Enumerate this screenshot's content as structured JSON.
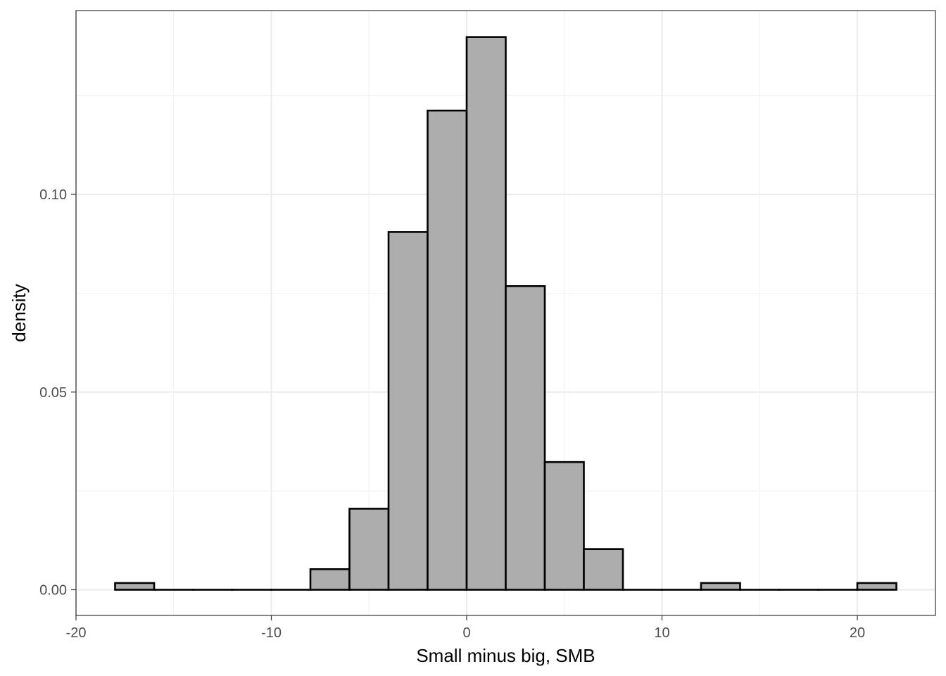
{
  "chart_data": {
    "type": "bar",
    "subtype": "histogram",
    "title": "",
    "xlabel": "Small minus big, SMB",
    "ylabel": "density",
    "xlim": [
      -20,
      24
    ],
    "ylim": [
      -0.0065,
      0.1465
    ],
    "x_ticks": [
      -20,
      -10,
      0,
      10,
      20
    ],
    "x_tick_labels": [
      "-20",
      "-10",
      "0",
      "10",
      "20"
    ],
    "y_ticks": [
      0.0,
      0.05,
      0.1
    ],
    "y_tick_labels": [
      "0.00",
      "0.05",
      "0.10"
    ],
    "x_minor_gridlines": [
      -15,
      -5,
      5,
      15
    ],
    "y_minor_gridlines": [
      0.025,
      0.075,
      0.125
    ],
    "grid": true,
    "bin_width": 2,
    "bin_edges": [
      -18,
      -16,
      -14,
      -12,
      -10,
      -8,
      -6,
      -4,
      -2,
      0,
      2,
      4,
      6,
      8,
      10,
      12,
      14,
      16,
      18,
      20,
      22
    ],
    "values": [
      0.0017,
      0,
      0,
      0,
      0,
      0.0052,
      0.0205,
      0.0905,
      0.1212,
      0.1398,
      0.0768,
      0.0323,
      0.0103,
      0,
      0,
      0.0017,
      0,
      0,
      0,
      0.0017
    ],
    "colors": {
      "bar_fill": "#adadad",
      "bar_stroke": "#000000",
      "grid_major": "#ebebeb",
      "grid_minor": "#f2f2f2",
      "panel_border": "#333333",
      "tick_text": "#4d4d4d"
    }
  }
}
